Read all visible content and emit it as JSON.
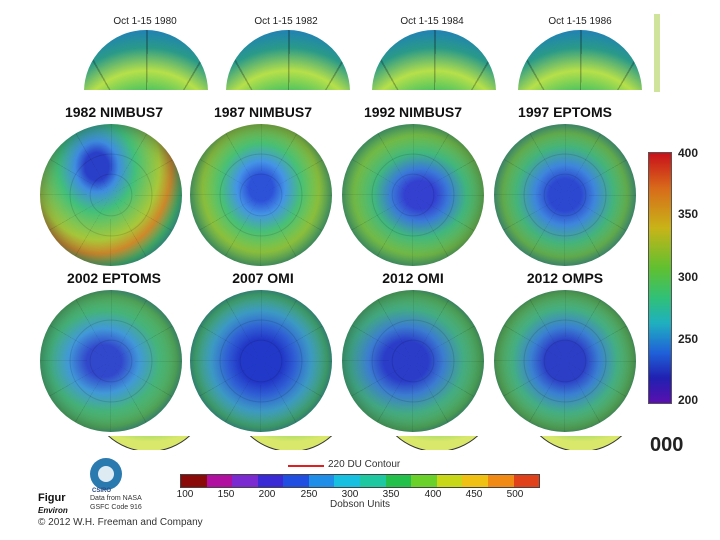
{
  "top_row": {
    "titles": [
      "Oct 1-15 1980",
      "Oct 1-15 1982",
      "Oct 1-15 1984",
      "Oct 1-15 1986"
    ]
  },
  "panels": [
    {
      "title": "1982 NIMBUS7"
    },
    {
      "title": "1987 NIMBUS7"
    },
    {
      "title": "1992 NIMBUS7"
    },
    {
      "title": "1997 EPTOMS"
    },
    {
      "title": "2002 EPTOMS"
    },
    {
      "title": "2007 OMI"
    },
    {
      "title": "2012 OMI"
    },
    {
      "title": "2012 OMPS"
    }
  ],
  "colorbar": {
    "labels": [
      "400",
      "350",
      "300",
      "250",
      "200"
    ]
  },
  "side_partial": "000",
  "legend": {
    "contour_label": "220 DU Contour",
    "contour_color": "#e02020",
    "ticks": [
      "100",
      "150",
      "200",
      "250",
      "300",
      "350",
      "400",
      "450",
      "500"
    ],
    "units": "Dobson Units",
    "colors": [
      "#8a0a0a",
      "#b10fa0",
      "#7a2ad0",
      "#3a2ad6",
      "#1f4ee0",
      "#1f8ee8",
      "#17c0e0",
      "#1ec8a0",
      "#24c04c",
      "#6ad02a",
      "#c8d818",
      "#f0c012",
      "#f08a14",
      "#e0401a"
    ]
  },
  "caption": {
    "logo_text": "CSIRO",
    "fig_word": "Figur",
    "environ": "Environ",
    "data_source_1": "Data from NASA",
    "data_source_2": "GSFC Code 916",
    "copyright": "© 2012 W.H. Freeman and Company"
  }
}
